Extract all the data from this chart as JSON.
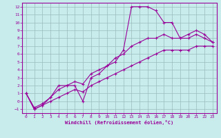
{
  "xlabel": "Windchill (Refroidissement éolien,°C)",
  "bg_color": "#c8ecec",
  "line_color": "#990099",
  "grid_color": "#99bbbb",
  "xlim": [
    -0.5,
    23.5
  ],
  "ylim": [
    -1.5,
    12.5
  ],
  "xticks": [
    0,
    1,
    2,
    3,
    4,
    5,
    6,
    7,
    8,
    9,
    10,
    11,
    12,
    13,
    14,
    15,
    16,
    17,
    18,
    19,
    20,
    21,
    22,
    23
  ],
  "yticks": [
    -1,
    0,
    1,
    2,
    3,
    4,
    5,
    6,
    7,
    8,
    9,
    10,
    11,
    12
  ],
  "series1_x": [
    0,
    1,
    2,
    3,
    4,
    5,
    6,
    7,
    8,
    9,
    10,
    11,
    12,
    13,
    14,
    15,
    16,
    17,
    18,
    19,
    20,
    21,
    22,
    23
  ],
  "series1_y": [
    1,
    -1,
    -0.5,
    0.5,
    2,
    2,
    2,
    0,
    3,
    3.5,
    4.5,
    5,
    6.5,
    12,
    12,
    12,
    11.5,
    10,
    10,
    8,
    8.5,
    9,
    8.5,
    7.5
  ],
  "series2_x": [
    0,
    1,
    2,
    3,
    4,
    5,
    6,
    7,
    8,
    9,
    10,
    11,
    12,
    13,
    14,
    15,
    16,
    17,
    18,
    19,
    20,
    21,
    22,
    23
  ],
  "series2_y": [
    1,
    -0.8,
    -0.3,
    0.5,
    1.5,
    2,
    2.5,
    2.2,
    3.5,
    4,
    4.5,
    5.5,
    6,
    7,
    7.5,
    8,
    8,
    8.5,
    8,
    8,
    8,
    8.5,
    8,
    7.5
  ],
  "series3_x": [
    0,
    1,
    2,
    3,
    4,
    5,
    6,
    7,
    8,
    9,
    10,
    11,
    12,
    13,
    14,
    15,
    16,
    17,
    18,
    19,
    20,
    21,
    22,
    23
  ],
  "series3_y": [
    1,
    -1,
    -0.5,
    0,
    0.5,
    1,
    1.5,
    1.2,
    2,
    2.5,
    3,
    3.5,
    4,
    4.5,
    5,
    5.5,
    6,
    6.5,
    6.5,
    6.5,
    6.5,
    7,
    7,
    7
  ]
}
